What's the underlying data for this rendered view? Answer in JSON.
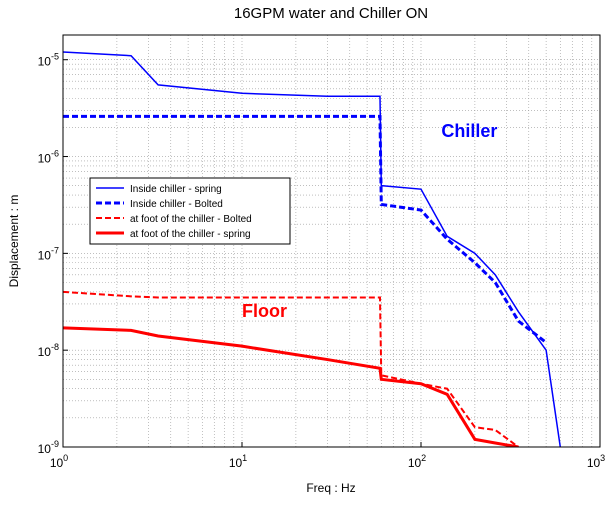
{
  "chart_data": {
    "type": "line",
    "title": "16GPM water and Chiller ON",
    "x_label": "Freq : Hz",
    "y_label": "Displacement : m",
    "log_x": true,
    "log_y": true,
    "grid": true,
    "legend": "upper left",
    "xlim": [
      1,
      1000
    ],
    "ylim": [
      1e-09,
      1.8e-05
    ],
    "xticks": [
      {
        "value": 1,
        "label": "10^0"
      },
      {
        "value": 10,
        "label": "10^1"
      },
      {
        "value": 100,
        "label": "10^2"
      },
      {
        "value": 1000,
        "label": "10^3"
      }
    ],
    "yticks": [
      {
        "value": 1e-09,
        "label": "10^-9"
      },
      {
        "value": 1e-08,
        "label": "10^-8"
      },
      {
        "value": 1e-07,
        "label": "10^-7"
      },
      {
        "value": 1e-06,
        "label": "10^-6"
      },
      {
        "value": 1e-05,
        "label": "10^-5"
      }
    ],
    "x": [
      1,
      2.4,
      3.4,
      10,
      30,
      59,
      60,
      100,
      140,
      200,
      260,
      350,
      500,
      600
    ],
    "series": [
      {
        "name": "Inside chiller - spring",
        "color": "#0000ff",
        "dash": false,
        "width": 1.5,
        "values": [
          1.2e-05,
          1.1e-05,
          5.5e-06,
          4.5e-06,
          4.2e-06,
          4.2e-06,
          5e-07,
          4.6e-07,
          1.5e-07,
          1e-07,
          6e-08,
          2.5e-08,
          1e-08,
          1e-09
        ]
      },
      {
        "name": "Inside chiller - Bolted",
        "color": "#0000ff",
        "dash": true,
        "width": 3,
        "values": [
          2.6e-06,
          2.6e-06,
          2.6e-06,
          2.6e-06,
          2.6e-06,
          2.6e-06,
          3.2e-07,
          2.8e-07,
          1.4e-07,
          8e-08,
          5e-08,
          2e-08,
          1.2e-08,
          null
        ]
      },
      {
        "name": "at foot of the chiller - Bolted",
        "color": "#ff0000",
        "dash": true,
        "width": 2,
        "values": [
          4e-08,
          3.6e-08,
          3.5e-08,
          3.5e-08,
          3.5e-08,
          3.5e-08,
          5.5e-09,
          4.5e-09,
          4e-09,
          1.6e-09,
          1.5e-09,
          1e-09,
          null,
          null
        ]
      },
      {
        "name": "at foot of the chiller - spring",
        "color": "#ff0000",
        "dash": false,
        "width": 3,
        "values": [
          1.7e-08,
          1.6e-08,
          1.4e-08,
          1.1e-08,
          8e-09,
          6.5e-09,
          5e-09,
          4.5e-09,
          3.5e-09,
          1.2e-09,
          1.1e-09,
          1e-09,
          null,
          null
        ]
      }
    ],
    "annotations": [
      {
        "text": "Chiller",
        "x": 130,
        "y": 1.6e-06,
        "color": "#0000ff"
      },
      {
        "text": "Floor",
        "x": 10,
        "y": 2.2e-08,
        "color": "#ff0000"
      }
    ]
  }
}
